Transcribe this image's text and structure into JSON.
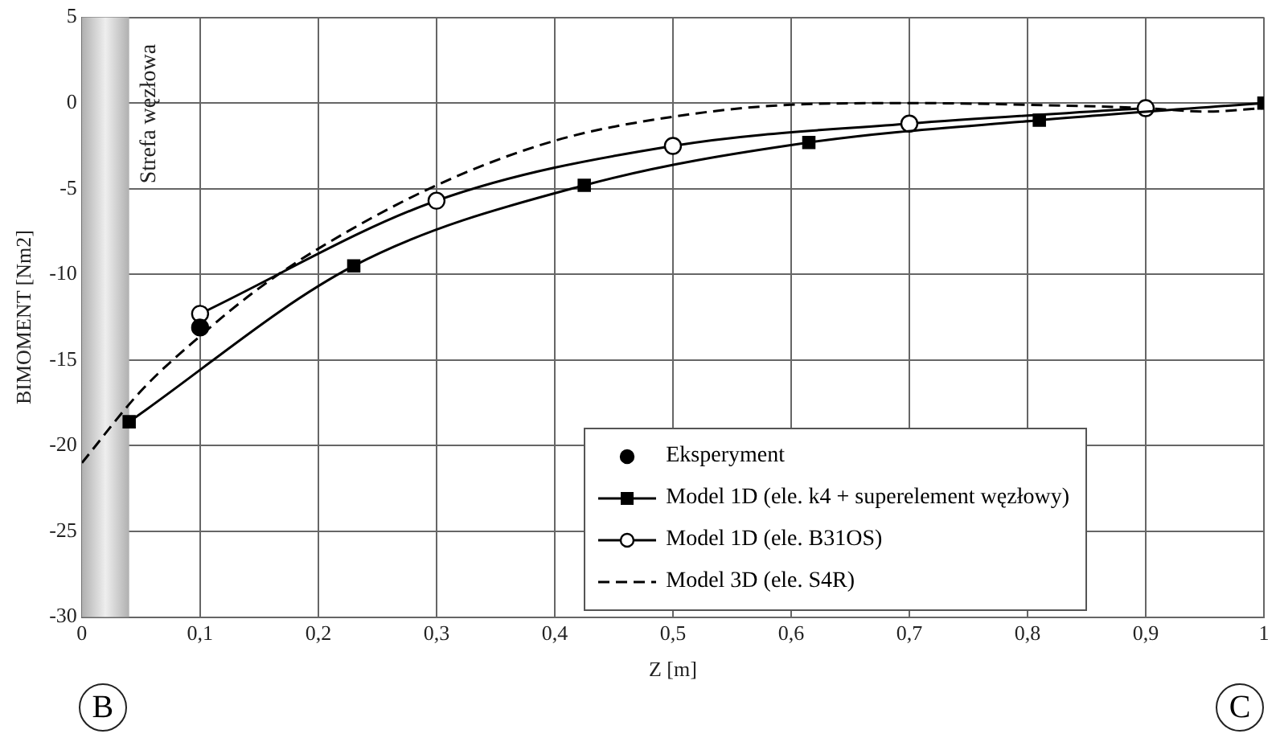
{
  "chart_data": {
    "type": "line",
    "xlabel": "Z [m]",
    "ylabel": "BIMOMENT [Nm2]",
    "xlim": [
      0,
      1
    ],
    "xticks": [
      0,
      {
        "value": 0.1,
        "label": "0,1"
      },
      {
        "value": 0.2,
        "label": "0,2"
      },
      {
        "value": 0.3,
        "label": "0,3"
      },
      {
        "value": 0.4,
        "label": "0,4"
      },
      {
        "value": 0.5,
        "label": "0,5"
      },
      {
        "value": 0.6,
        "label": "0,6"
      },
      {
        "value": 0.7,
        "label": "0,7"
      },
      {
        "value": 0.8,
        "label": "0,8"
      },
      {
        "value": 0.9,
        "label": "0,9"
      },
      1
    ],
    "ylim": [
      -30,
      5
    ],
    "yticks": [
      5,
      0,
      -5,
      -10,
      -15,
      -20,
      -25,
      -30
    ],
    "grid": true,
    "legend": "bottom right",
    "series": [
      {
        "name": "Eksperyment",
        "type": "scatter",
        "marker": "circle",
        "color": "#000000",
        "x": [
          0.1
        ],
        "values": [
          -13.1
        ]
      },
      {
        "name": "Model 1D (ele. k4 +  superelement węzłowy)",
        "marker": "square",
        "line_style": "solid",
        "color": "#000000",
        "x": [
          0.04,
          0.23,
          0.425,
          0.615,
          0.81,
          1.0
        ],
        "values": [
          -18.6,
          -9.5,
          -4.8,
          -2.3,
          -1.0,
          0
        ]
      },
      {
        "name": "Model 1D (ele. B31OS)",
        "marker": "circle",
        "line_style": "solid",
        "color": "#000000",
        "x": [
          0.1,
          0.3,
          0.5,
          0.7,
          0.9
        ],
        "values": [
          -12.3,
          -5.7,
          -2.5,
          -1.2,
          -0.3
        ]
      },
      {
        "name": "Model 3D (ele. S4R)",
        "marker": "none",
        "line_style": "dashed",
        "color": "#000000",
        "x": [
          0,
          0.05,
          0.1,
          0.15,
          0.2,
          0.3,
          0.4,
          0.5,
          0.6,
          0.7,
          0.8,
          0.9,
          0.95,
          1.0
        ],
        "values": [
          -21,
          -16.8,
          -13.6,
          -10.8,
          -8.5,
          -4.8,
          -2.2,
          -0.8,
          -0.1,
          0,
          -0.1,
          -0.3,
          -0.5,
          -0.3
        ]
      }
    ],
    "bands": [
      {
        "axis": "x",
        "from": 0,
        "to": 0.04,
        "label": "Strefa węzłowa",
        "color": "#b0b0b0"
      }
    ],
    "annotations": [
      "B",
      "C"
    ]
  }
}
